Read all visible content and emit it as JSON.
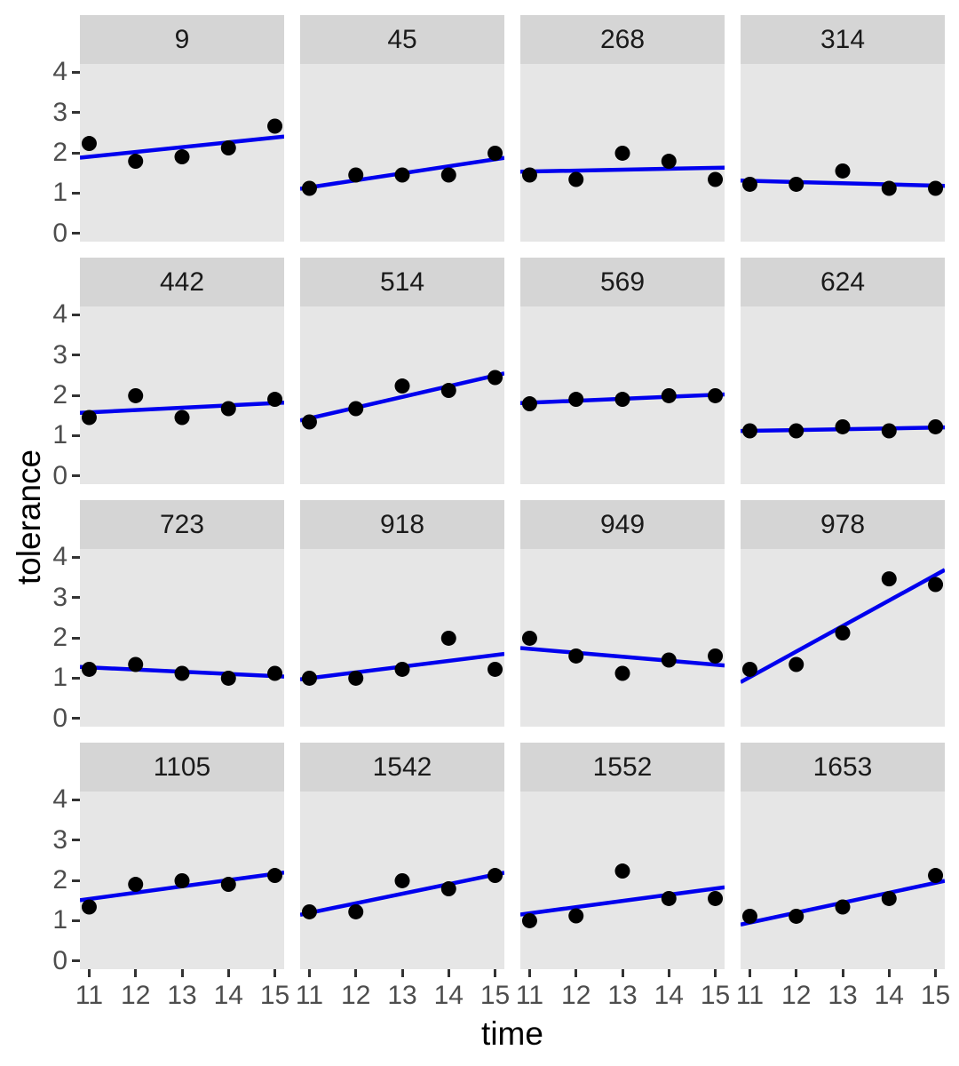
{
  "chart_data": {
    "type": "scatter",
    "layout": "4x4-facet-grid",
    "facet_variable": "id",
    "xlabel": "time",
    "ylabel": "tolerance",
    "x": [
      11,
      12,
      13,
      14,
      15
    ],
    "x_ticks": [
      "11",
      "12",
      "13",
      "14",
      "15"
    ],
    "y_ticks": [
      "0",
      "1",
      "2",
      "3",
      "4"
    ],
    "xlim": [
      10.8,
      15.2
    ],
    "ylim": [
      -0.2,
      4.2
    ],
    "grid": "off",
    "smoother": "linear-ols-fit-per-facet-no-se-full-range",
    "facets": [
      {
        "label": "9",
        "values": [
          2.23,
          1.79,
          1.9,
          2.12,
          2.66
        ]
      },
      {
        "label": "45",
        "values": [
          1.12,
          1.45,
          1.45,
          1.45,
          1.99
        ]
      },
      {
        "label": "268",
        "values": [
          1.45,
          1.34,
          1.99,
          1.79,
          1.34
        ]
      },
      {
        "label": "314",
        "values": [
          1.22,
          1.22,
          1.55,
          1.12,
          1.12
        ]
      },
      {
        "label": "442",
        "values": [
          1.45,
          1.99,
          1.45,
          1.67,
          1.9
        ]
      },
      {
        "label": "514",
        "values": [
          1.34,
          1.67,
          2.23,
          2.12,
          2.44
        ]
      },
      {
        "label": "569",
        "values": [
          1.79,
          1.9,
          1.9,
          1.99,
          1.99
        ]
      },
      {
        "label": "624",
        "values": [
          1.12,
          1.12,
          1.22,
          1.12,
          1.22
        ]
      },
      {
        "label": "723",
        "values": [
          1.22,
          1.34,
          1.12,
          1.0,
          1.12
        ]
      },
      {
        "label": "918",
        "values": [
          1.0,
          1.0,
          1.22,
          1.99,
          1.22
        ]
      },
      {
        "label": "949",
        "values": [
          1.99,
          1.55,
          1.12,
          1.45,
          1.55
        ]
      },
      {
        "label": "978",
        "values": [
          1.22,
          1.34,
          2.12,
          3.46,
          3.32
        ]
      },
      {
        "label": "1105",
        "values": [
          1.34,
          1.9,
          1.99,
          1.9,
          2.12
        ]
      },
      {
        "label": "1542",
        "values": [
          1.22,
          1.22,
          1.99,
          1.79,
          2.12
        ]
      },
      {
        "label": "1552",
        "values": [
          1.0,
          1.12,
          2.23,
          1.55,
          1.55
        ]
      },
      {
        "label": "1653",
        "values": [
          1.11,
          1.11,
          1.34,
          1.55,
          2.12
        ]
      }
    ],
    "colors": {
      "point": "#000000",
      "line": "#0000ee",
      "panel_bg": "#e6e6e6",
      "strip_bg": "#d5d5d5",
      "tick_mark": "#333333",
      "tick_text": "#4d4d4d",
      "strip_text": "#1a1a1a"
    }
  }
}
